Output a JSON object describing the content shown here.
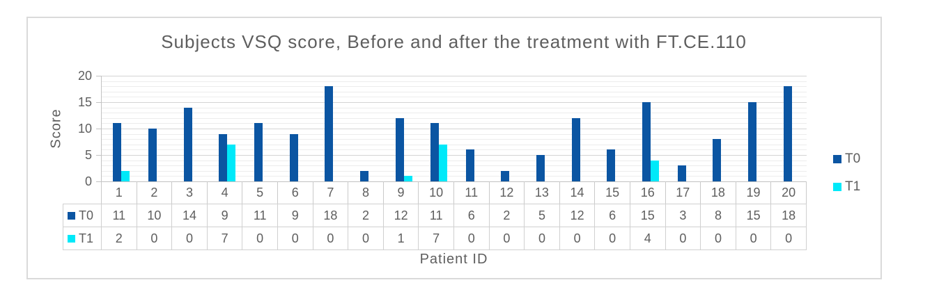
{
  "chart_data": {
    "type": "bar",
    "title": "Subjects VSQ score, Before and after the treatment with FT.CE.110",
    "xlabel": "Patient ID",
    "ylabel": "Score",
    "categories": [
      "1",
      "2",
      "3",
      "4",
      "5",
      "6",
      "7",
      "8",
      "9",
      "10",
      "11",
      "12",
      "13",
      "14",
      "15",
      "16",
      "17",
      "18",
      "19",
      "20"
    ],
    "series": [
      {
        "name": "T0",
        "color": "#0B55A2",
        "values": [
          11,
          10,
          14,
          9,
          11,
          9,
          18,
          2,
          12,
          11,
          6,
          2,
          5,
          12,
          6,
          15,
          3,
          8,
          15,
          18
        ]
      },
      {
        "name": "T1",
        "color": "#00E9F9",
        "values": [
          2,
          0,
          0,
          7,
          0,
          0,
          0,
          0,
          1,
          7,
          0,
          0,
          0,
          0,
          0,
          4,
          0,
          0,
          0,
          0
        ]
      }
    ],
    "ylim": [
      0,
      20
    ],
    "yticks": [
      0,
      5,
      10,
      15,
      20
    ],
    "grid": "horizontal, minor every 1 unit, major every 5 units",
    "legend_position": "right",
    "data_table_shown": true
  },
  "colors": {
    "t0_bar": "#0B55A2",
    "t1_bar": "#00E9F9",
    "text": "#5e5e5e",
    "frame_border": "#dadada",
    "axis": "#c2c2c2",
    "table_border": "#d0d0d0",
    "grid_minor": "#ececec",
    "grid_major": "#d4d4d4"
  }
}
